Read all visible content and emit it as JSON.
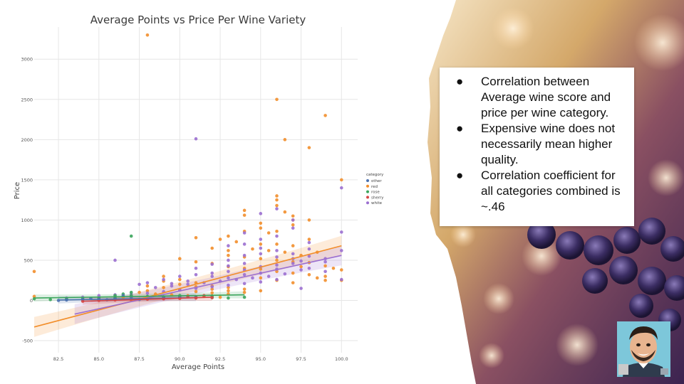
{
  "slide": {
    "bullets": [
      "Correlation between Average wine score and price per wine category.",
      "Expensive wine does not necessarily mean higher quality.",
      "Correlation coefficient for all categories combined is ~.46"
    ],
    "bullet_glyph": "●"
  },
  "colors": {
    "other": "#4c72b0",
    "red": "#f28e2b",
    "rose": "#3ba55c",
    "sherry": "#d64545",
    "white": "#9b6fd0",
    "grid": "#e6e6e6"
  },
  "decor": {
    "background": "grape-vineyard-photo",
    "avatar": "presenter-caricature-webcam"
  },
  "chart_data": {
    "type": "scatter",
    "title": "Average Points vs Price Per Wine Variety",
    "xlabel": "Average Points",
    "ylabel": "Price",
    "xlim": [
      81,
      101
    ],
    "ylim": [
      -650,
      3400
    ],
    "xticks": [
      "82.5",
      "85.0",
      "87.5",
      "90.0",
      "92.5",
      "95.0",
      "97.5",
      "100.0"
    ],
    "yticks": [
      "-500",
      "0",
      "500",
      "1000",
      "1500",
      "2000",
      "2500",
      "3000"
    ],
    "grid": true,
    "legend": {
      "title": "category",
      "position": "right",
      "entries": [
        "other",
        "red",
        "rose",
        "sherry",
        "white"
      ]
    },
    "series": [
      {
        "name": "red",
        "points": [
          [
            88,
            3300
          ],
          [
            96,
            2500
          ],
          [
            99,
            2300
          ],
          [
            96.5,
            2000
          ],
          [
            98,
            1900
          ],
          [
            100,
            1500
          ],
          [
            96,
            1300
          ],
          [
            96,
            1250
          ],
          [
            96,
            1180
          ],
          [
            96.5,
            1100
          ],
          [
            97,
            1050
          ],
          [
            97,
            1000
          ],
          [
            94,
            1120
          ],
          [
            94,
            1060
          ],
          [
            98,
            1000
          ],
          [
            97,
            940
          ],
          [
            93,
            800
          ],
          [
            95,
            960
          ],
          [
            95,
            900
          ],
          [
            94,
            860
          ],
          [
            96,
            860
          ],
          [
            95.5,
            840
          ],
          [
            98,
            760
          ],
          [
            91,
            780
          ],
          [
            92.5,
            760
          ],
          [
            93.5,
            730
          ],
          [
            95,
            700
          ],
          [
            96,
            700
          ],
          [
            97,
            680
          ],
          [
            94.5,
            640
          ],
          [
            92,
            650
          ],
          [
            93,
            620
          ],
          [
            95.5,
            620
          ],
          [
            96.5,
            600
          ],
          [
            97.5,
            560
          ],
          [
            98.5,
            600
          ],
          [
            93,
            560
          ],
          [
            94,
            540
          ],
          [
            95,
            520
          ],
          [
            96,
            500
          ],
          [
            97,
            480
          ],
          [
            98,
            470
          ],
          [
            99,
            430
          ],
          [
            99.5,
            400
          ],
          [
            90,
            520
          ],
          [
            91,
            480
          ],
          [
            92,
            460
          ],
          [
            93,
            420
          ],
          [
            94,
            400
          ],
          [
            95,
            390
          ],
          [
            96,
            360
          ],
          [
            97,
            340
          ],
          [
            98,
            320
          ],
          [
            99,
            300
          ],
          [
            99,
            250
          ],
          [
            100,
            380
          ],
          [
            89,
            300
          ],
          [
            89,
            240
          ],
          [
            90,
            260
          ],
          [
            90,
            200
          ],
          [
            91,
            220
          ],
          [
            91,
            170
          ],
          [
            92,
            180
          ],
          [
            92,
            140
          ],
          [
            93,
            160
          ],
          [
            93,
            120
          ],
          [
            94,
            140
          ],
          [
            94,
            100
          ],
          [
            95,
            120
          ],
          [
            95,
            280
          ],
          [
            96,
            250
          ],
          [
            97,
            220
          ],
          [
            88,
            180
          ],
          [
            88,
            120
          ],
          [
            87.5,
            100
          ],
          [
            89,
            160
          ],
          [
            90,
            130
          ],
          [
            91,
            110
          ],
          [
            92,
            95
          ],
          [
            93,
            80
          ],
          [
            88.5,
            80
          ],
          [
            89.5,
            70
          ],
          [
            90.5,
            60
          ],
          [
            91.5,
            50
          ],
          [
            92.5,
            40
          ],
          [
            87,
            60
          ],
          [
            86.5,
            40
          ],
          [
            86,
            30
          ],
          [
            85,
            20
          ],
          [
            84,
            15
          ],
          [
            81,
            360
          ],
          [
            81,
            50
          ],
          [
            100,
            250
          ],
          [
            98.5,
            280
          ],
          [
            97.5,
            420
          ]
        ]
      },
      {
        "name": "white",
        "points": [
          [
            91,
            2010
          ],
          [
            100,
            1400
          ],
          [
            100,
            850
          ],
          [
            100,
            620
          ],
          [
            100,
            260
          ],
          [
            86,
            500
          ],
          [
            95,
            1080
          ],
          [
            96,
            1140
          ],
          [
            97,
            1000
          ],
          [
            97,
            900
          ],
          [
            96,
            800
          ],
          [
            95,
            760
          ],
          [
            94,
            840
          ],
          [
            93,
            680
          ],
          [
            94,
            700
          ],
          [
            95,
            650
          ],
          [
            96,
            620
          ],
          [
            97,
            580
          ],
          [
            98,
            550
          ],
          [
            98,
            640
          ],
          [
            99,
            520
          ],
          [
            99,
            480
          ],
          [
            97,
            460
          ],
          [
            96,
            440
          ],
          [
            95,
            420
          ],
          [
            94,
            380
          ],
          [
            93,
            360
          ],
          [
            92,
            340
          ],
          [
            91,
            320
          ],
          [
            90,
            300
          ],
          [
            89,
            260
          ],
          [
            88,
            220
          ],
          [
            87.5,
            200
          ],
          [
            97.5,
            380
          ],
          [
            98,
            400
          ],
          [
            99,
            360
          ],
          [
            96.5,
            330
          ],
          [
            95.5,
            300
          ],
          [
            94.5,
            280
          ],
          [
            93.5,
            260
          ],
          [
            92.5,
            240
          ],
          [
            91.5,
            220
          ],
          [
            90.5,
            200
          ],
          [
            89.5,
            180
          ],
          [
            88.5,
            160
          ],
          [
            97.5,
            150
          ],
          [
            96,
            260
          ],
          [
            95,
            230
          ],
          [
            94,
            210
          ],
          [
            93,
            190
          ],
          [
            92,
            170
          ],
          [
            91,
            150
          ],
          [
            90,
            130
          ],
          [
            89,
            110
          ],
          [
            88,
            90
          ],
          [
            87,
            80
          ],
          [
            86,
            70
          ],
          [
            85,
            60
          ],
          [
            84,
            40
          ],
          [
            83,
            30
          ],
          [
            97,
            520
          ],
          [
            98,
            720
          ],
          [
            94,
            560
          ],
          [
            93,
            500
          ],
          [
            92,
            450
          ],
          [
            95,
            580
          ],
          [
            96,
            540
          ],
          [
            97.5,
            490
          ],
          [
            94,
            460
          ],
          [
            93,
            430
          ],
          [
            91,
            400
          ],
          [
            92,
            300
          ],
          [
            93,
            280
          ],
          [
            94,
            320
          ],
          [
            95,
            340
          ],
          [
            96,
            390
          ],
          [
            90.5,
            240
          ],
          [
            89.5,
            210
          ]
        ]
      },
      {
        "name": "rose",
        "points": [
          [
            87,
            800
          ],
          [
            87,
            100
          ],
          [
            86.5,
            80
          ],
          [
            87,
            60
          ],
          [
            88,
            50
          ],
          [
            89,
            45
          ],
          [
            90,
            40
          ],
          [
            91,
            40
          ],
          [
            92,
            35
          ],
          [
            93,
            30
          ],
          [
            94,
            40
          ],
          [
            86,
            30
          ],
          [
            85,
            25
          ],
          [
            84,
            20
          ],
          [
            83,
            15
          ],
          [
            82,
            10
          ],
          [
            81,
            20
          ],
          [
            86,
            60
          ],
          [
            88,
            30
          ],
          [
            90,
            60
          ],
          [
            92,
            55
          ]
        ]
      },
      {
        "name": "other",
        "points": [
          [
            82.5,
            0
          ],
          [
            83,
            5
          ],
          [
            84,
            10
          ],
          [
            85,
            15
          ],
          [
            86,
            20
          ],
          [
            86.5,
            60
          ],
          [
            87,
            40
          ],
          [
            88,
            30
          ],
          [
            89,
            35
          ],
          [
            90,
            45
          ],
          [
            91,
            40
          ],
          [
            84.5,
            25
          ],
          [
            85.5,
            8
          ],
          [
            87.5,
            12
          ]
        ]
      },
      {
        "name": "sherry",
        "points": [
          [
            84,
            -10
          ],
          [
            85,
            0
          ],
          [
            86,
            5
          ],
          [
            87,
            10
          ],
          [
            88,
            15
          ],
          [
            89,
            20
          ],
          [
            90,
            25
          ],
          [
            91,
            30
          ],
          [
            92,
            35
          ],
          [
            91.5,
            60
          ],
          [
            90.5,
            50
          ]
        ]
      }
    ],
    "regression_lines": [
      {
        "name": "red",
        "x": [
          81,
          100
        ],
        "y": [
          -330,
          680
        ]
      },
      {
        "name": "white",
        "x": [
          83.5,
          100
        ],
        "y": [
          -170,
          560
        ]
      },
      {
        "name": "rose",
        "x": [
          81,
          94
        ],
        "y": [
          30,
          70
        ]
      },
      {
        "name": "other",
        "x": [
          82.5,
          91
        ],
        "y": [
          5,
          35
        ]
      },
      {
        "name": "sherry",
        "x": [
          84,
          92
        ],
        "y": [
          -10,
          40
        ]
      }
    ]
  }
}
